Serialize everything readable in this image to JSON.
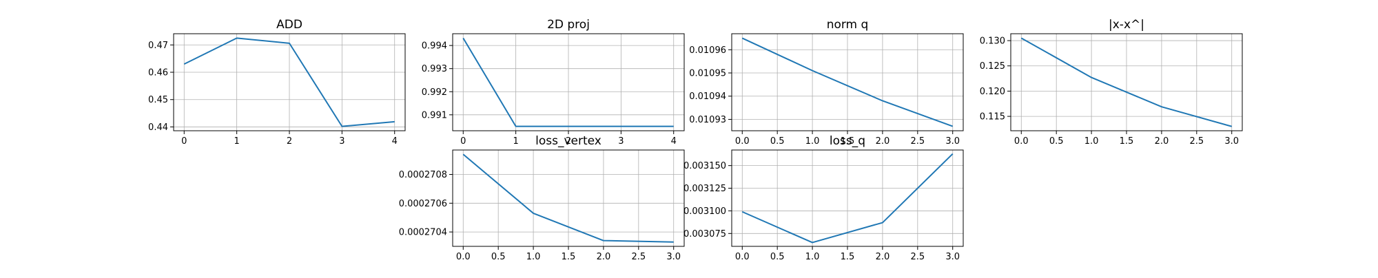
{
  "chart_data": [
    {
      "type": "line",
      "title": "ADD",
      "x": [
        0,
        1,
        2,
        3,
        4
      ],
      "series": [
        {
          "values": [
            0.463,
            0.4725,
            0.4706,
            0.4402,
            0.4419
          ]
        }
      ],
      "xticks": [
        "0",
        "1",
        "2",
        "3",
        "4"
      ],
      "xtick_values": [
        0,
        1,
        2,
        3,
        4
      ],
      "yticks": [
        "0.44",
        "0.45",
        "0.46",
        "0.47"
      ],
      "ytick_values": [
        0.44,
        0.45,
        0.46,
        0.47
      ],
      "xlim": [
        -0.2,
        4.2
      ],
      "ylim": [
        0.4386,
        0.4741
      ],
      "grid": true,
      "color": "#1f77b4"
    },
    {
      "type": "line",
      "title": "2D proj",
      "x": [
        0,
        1,
        2,
        3,
        4
      ],
      "series": [
        {
          "values": [
            0.99432,
            0.9905,
            0.9905,
            0.9905,
            0.9905
          ]
        }
      ],
      "xticks": [
        "0",
        "1",
        "2",
        "3",
        "4"
      ],
      "xtick_values": [
        0,
        1,
        2,
        3,
        4
      ],
      "yticks": [
        "0.991",
        "0.992",
        "0.993",
        "0.994"
      ],
      "ytick_values": [
        0.991,
        0.992,
        0.993,
        0.994
      ],
      "xlim": [
        -0.2,
        4.2
      ],
      "ylim": [
        0.99031,
        0.99451
      ],
      "grid": true,
      "color": "#1f77b4"
    },
    {
      "type": "line",
      "title": "norm q",
      "x": [
        0,
        1,
        2,
        3
      ],
      "series": [
        {
          "values": [
            0.010965,
            0.010951,
            0.010938,
            0.010927
          ]
        }
      ],
      "xticks": [
        "0.0",
        "0.5",
        "1.0",
        "1.5",
        "2.0",
        "2.5",
        "3.0"
      ],
      "xtick_values": [
        0,
        0.5,
        1,
        1.5,
        2,
        2.5,
        3
      ],
      "yticks": [
        "0.01093",
        "0.01094",
        "0.01095",
        "0.01096"
      ],
      "ytick_values": [
        0.01093,
        0.01094,
        0.01095,
        0.01096
      ],
      "xlim": [
        -0.15,
        3.15
      ],
      "ylim": [
        0.0109251,
        0.0109669
      ],
      "grid": true,
      "color": "#1f77b4"
    },
    {
      "type": "line",
      "title": "|x-x^|",
      "x": [
        0,
        1,
        2,
        3
      ],
      "series": [
        {
          "values": [
            0.1305,
            0.1227,
            0.1169,
            0.113
          ]
        }
      ],
      "xticks": [
        "0.0",
        "0.5",
        "1.0",
        "1.5",
        "2.0",
        "2.5",
        "3.0"
      ],
      "xtick_values": [
        0,
        0.5,
        1,
        1.5,
        2,
        2.5,
        3
      ],
      "yticks": [
        "0.115",
        "0.120",
        "0.125",
        "0.130"
      ],
      "ytick_values": [
        0.115,
        0.12,
        0.125,
        0.13
      ],
      "xlim": [
        -0.15,
        3.15
      ],
      "ylim": [
        0.11215,
        0.13137
      ],
      "grid": true,
      "color": "#1f77b4"
    },
    {
      "type": "line",
      "title": "loss_vertex",
      "x": [
        0,
        1,
        2,
        3
      ],
      "series": [
        {
          "values": [
            0.00027094,
            0.00027053,
            0.00027034,
            0.00027033
          ]
        }
      ],
      "xticks": [
        "0.0",
        "0.5",
        "1.0",
        "1.5",
        "2.0",
        "2.5",
        "3.0"
      ],
      "xtick_values": [
        0,
        0.5,
        1,
        1.5,
        2,
        2.5,
        3
      ],
      "yticks": [
        "0.0002704",
        "0.0002706",
        "0.0002708"
      ],
      "ytick_values": [
        0.0002704,
        0.0002706,
        0.0002708
      ],
      "xlim": [
        -0.15,
        3.15
      ],
      "ylim": [
        0.0002703,
        0.00027097
      ],
      "grid": true,
      "color": "#1f77b4"
    },
    {
      "type": "line",
      "title": "loss_q",
      "x": [
        0,
        1,
        2,
        3
      ],
      "series": [
        {
          "values": [
            0.003099,
            0.003065,
            0.003087,
            0.003163
          ]
        }
      ],
      "xticks": [
        "0.0",
        "0.5",
        "1.0",
        "1.5",
        "2.0",
        "2.5",
        "3.0"
      ],
      "xtick_values": [
        0,
        0.5,
        1,
        1.5,
        2,
        2.5,
        3
      ],
      "yticks": [
        "0.003075",
        "0.003100",
        "0.003125",
        "0.003150"
      ],
      "ytick_values": [
        0.003075,
        0.0031,
        0.003125,
        0.00315
      ],
      "xlim": [
        -0.15,
        3.15
      ],
      "ylim": [
        0.0030608,
        0.0031672
      ],
      "grid": true,
      "color": "#1f77b4"
    }
  ]
}
